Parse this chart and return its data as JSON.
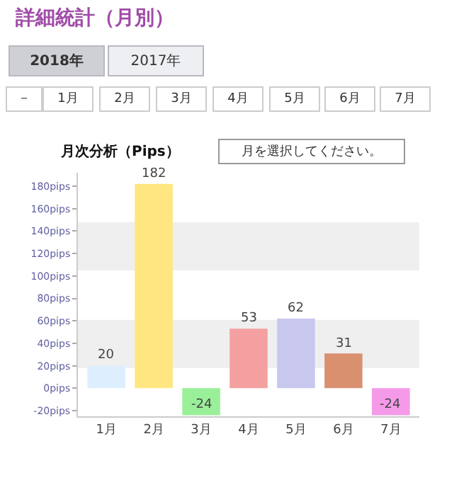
{
  "chart_data": {
    "type": "bar",
    "title": "詳細統計（月別）",
    "subtitle": "月次分析（Pips）",
    "annotations": [
      "2018年",
      "2017年",
      "－",
      "1月",
      "2月",
      "3月",
      "4月",
      "5月",
      "6月",
      "7月",
      "月を選択してください。"
    ],
    "categories": [
      "1月",
      "2月",
      "3月",
      "4月",
      "5月",
      "6月",
      "7月"
    ],
    "values": [
      20,
      182,
      -24,
      53,
      62,
      31,
      -24
    ],
    "colors": [
      "#ddeeff",
      "#ffe680",
      "#99f099",
      "#f5a0a0",
      "#c8c8ee",
      "#d9906f",
      "#f59ae8"
    ],
    "data_labels": true,
    "ylim": [
      -25,
      192
    ],
    "yticks": [
      {
        "value": -20,
        "label": "-20pips"
      },
      {
        "value": 0,
        "label": "0pips"
      },
      {
        "value": 20,
        "label": "20pips"
      },
      {
        "value": 40,
        "label": "40pips"
      },
      {
        "value": 60,
        "label": "60pips"
      },
      {
        "value": 80,
        "label": "80pips"
      },
      {
        "value": 100,
        "label": "100pips"
      },
      {
        "value": 120,
        "label": "120pips"
      },
      {
        "value": 140,
        "label": "140pips"
      },
      {
        "value": 160,
        "label": "160pips"
      },
      {
        "value": 180,
        "label": "180pips"
      }
    ],
    "bands": [
      {
        "axis": "y",
        "from": 18,
        "to": 61,
        "color": "#efefef"
      },
      {
        "axis": "y",
        "from": 105,
        "to": 148,
        "color": "#efefef"
      }
    ]
  }
}
